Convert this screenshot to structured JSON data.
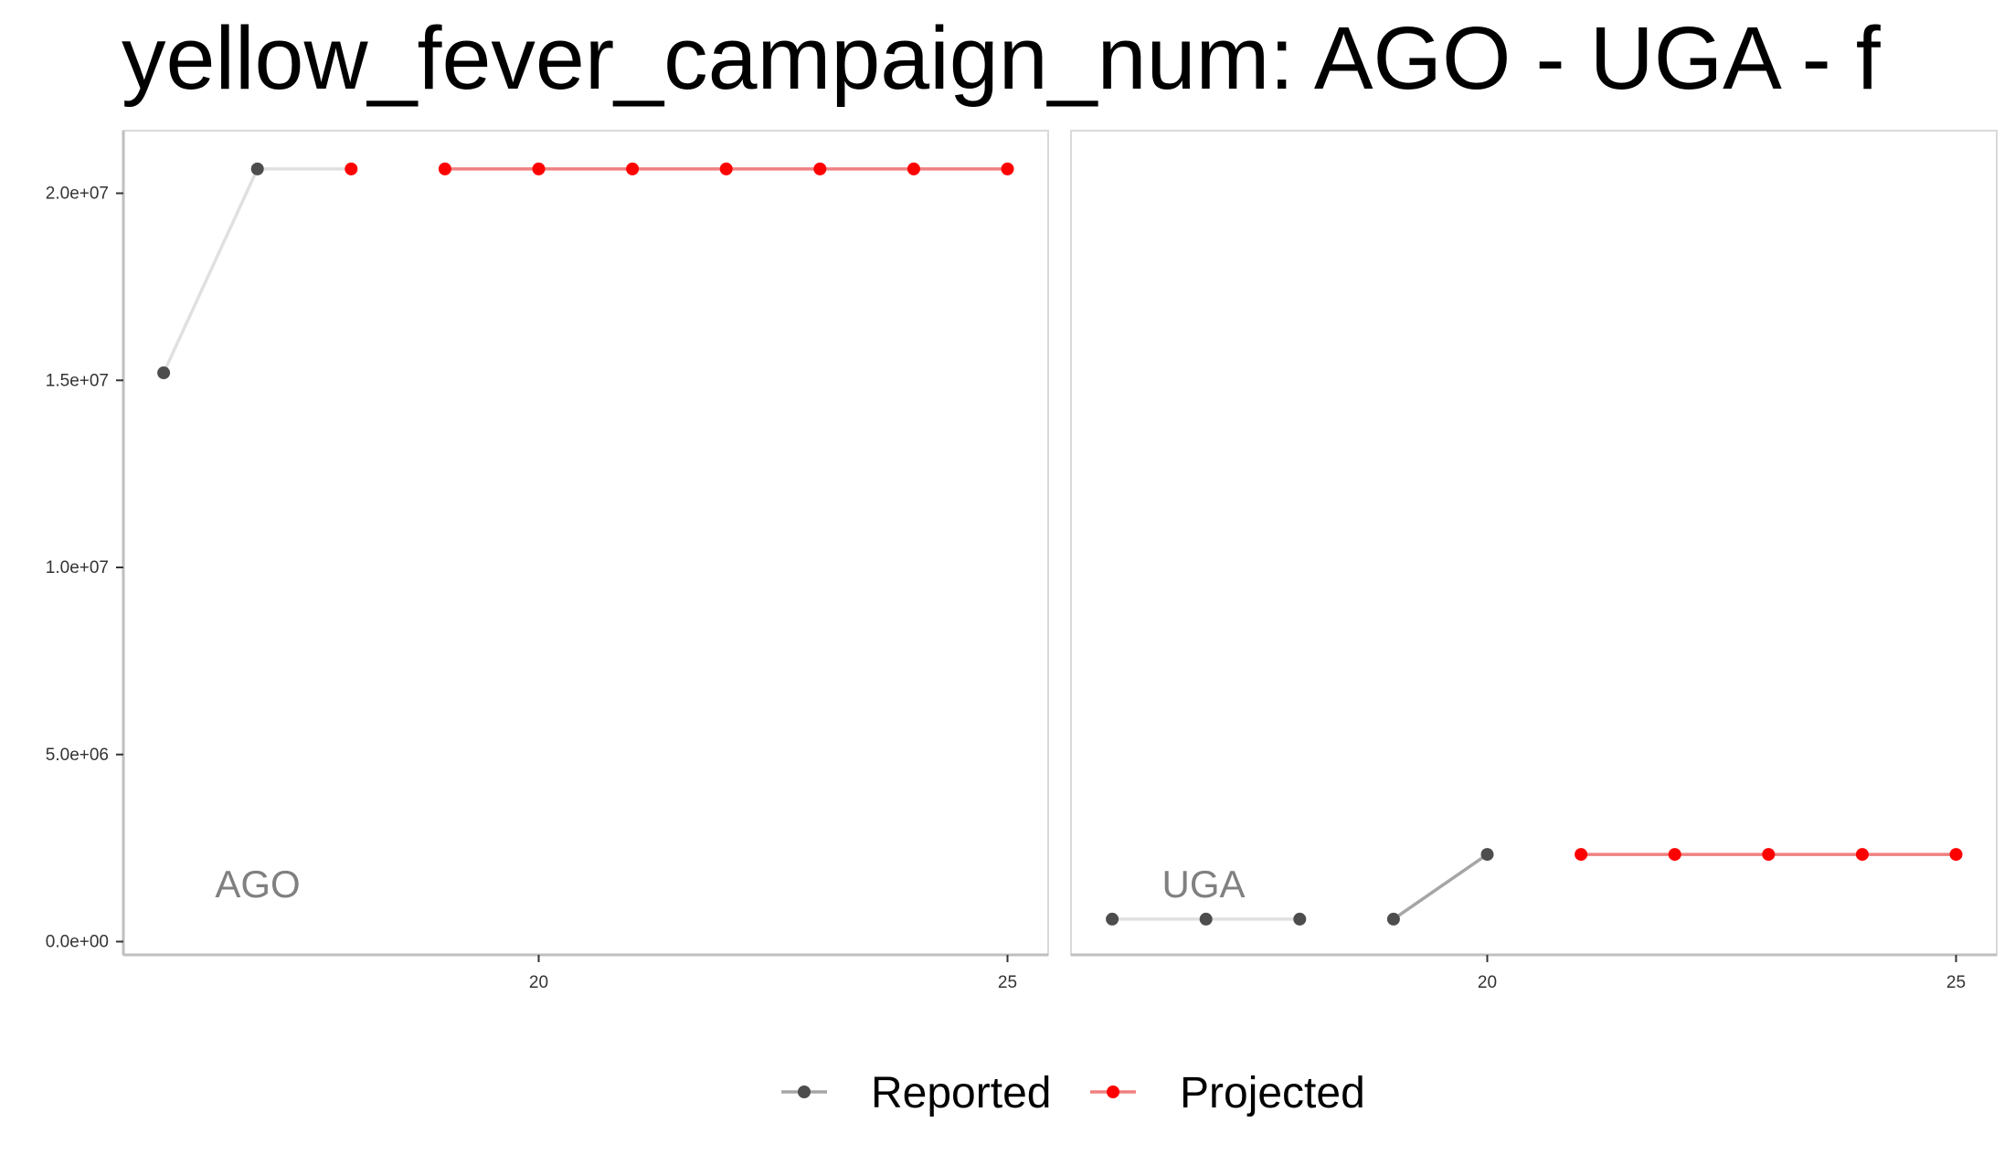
{
  "chart_data": {
    "type": "line",
    "title": "yellow_fever_campaign_num: AGO - UGA - f",
    "xlabel": "",
    "ylabel": "",
    "xlim": [
      15.6,
      25.5
    ],
    "ylim": [
      -400000,
      21500000
    ],
    "x_ticks": [
      20,
      25
    ],
    "x_tick_labels": [
      "20",
      "25"
    ],
    "y_ticks": [
      0,
      5000000,
      10000000,
      15000000,
      20000000
    ],
    "y_tick_labels": [
      "0.0e+00",
      "5.0e+06",
      "1.0e+07",
      "1.5e+07",
      "2.0e+07"
    ],
    "grid": false,
    "legend_position": "bottom",
    "legend": [
      {
        "name": "Reported",
        "color": "#4d4d4d"
      },
      {
        "name": "Projected",
        "color": "#ff0000"
      }
    ],
    "colors": {
      "reported_point": "#4d4d4d",
      "reported_line_light": "#e0e0e0",
      "reported_line_dark": "#a6a6a6",
      "projected_point": "#ff0000",
      "projected_line": "#f08080",
      "panel_border": "#d9d9d9",
      "axis_line": "#bfbfbf"
    },
    "panels": [
      {
        "label": "AGO",
        "reported": [
          {
            "x": 16,
            "y": 15200000
          },
          {
            "x": 17,
            "y": 20650000
          }
        ],
        "projected": [
          {
            "x": 18,
            "y": 20650000
          },
          {
            "x": 19,
            "y": 20650000
          },
          {
            "x": 20,
            "y": 20650000
          },
          {
            "x": 21,
            "y": 20650000
          },
          {
            "x": 22,
            "y": 20650000
          },
          {
            "x": 23,
            "y": 20650000
          },
          {
            "x": 24,
            "y": 20650000
          },
          {
            "x": 25,
            "y": 20650000
          }
        ],
        "segments": [
          {
            "from": [
              16,
              15200000
            ],
            "to": [
              17,
              20650000
            ],
            "style": "reported_light"
          },
          {
            "from": [
              17,
              20650000
            ],
            "to": [
              18,
              20650000
            ],
            "style": "reported_light"
          },
          {
            "from": [
              19,
              20650000
            ],
            "to": [
              25,
              20650000
            ],
            "style": "projected"
          }
        ]
      },
      {
        "label": "UGA",
        "reported": [
          {
            "x": 16,
            "y": 600000
          },
          {
            "x": 17,
            "y": 600000
          },
          {
            "x": 18,
            "y": 600000
          },
          {
            "x": 19,
            "y": 600000
          },
          {
            "x": 20,
            "y": 2330000
          }
        ],
        "projected": [
          {
            "x": 21,
            "y": 2330000
          },
          {
            "x": 22,
            "y": 2330000
          },
          {
            "x": 23,
            "y": 2330000
          },
          {
            "x": 24,
            "y": 2330000
          },
          {
            "x": 25,
            "y": 2330000
          }
        ],
        "segments": [
          {
            "from": [
              16,
              600000
            ],
            "to": [
              18,
              600000
            ],
            "style": "reported_light"
          },
          {
            "from": [
              19,
              600000
            ],
            "to": [
              20,
              2330000
            ],
            "style": "reported_dark"
          },
          {
            "from": [
              21,
              2330000
            ],
            "to": [
              25,
              2330000
            ],
            "style": "projected"
          }
        ]
      }
    ]
  }
}
